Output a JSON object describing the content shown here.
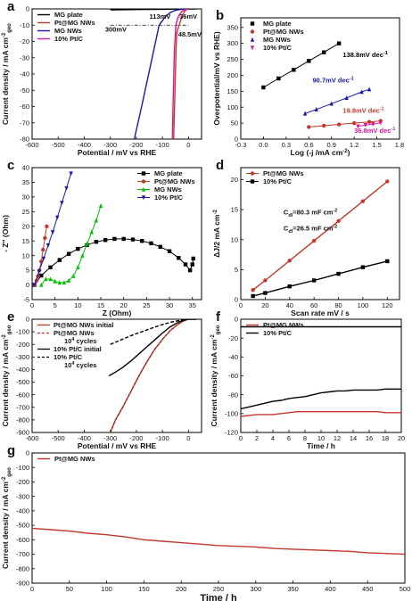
{
  "chart_data": [
    {
      "id": "a",
      "panel_label": "a",
      "type": "line",
      "xlabel": "Potential / mV vs RHE",
      "ylabel": [
        "Current density / mA cm",
        "-2",
        "geo"
      ],
      "xlim": [
        -600,
        50
      ],
      "ylim": [
        -80,
        0
      ],
      "xticks": [
        -600,
        -500,
        -400,
        -300,
        -200,
        -100,
        0
      ],
      "yticks": [
        -80,
        -70,
        -60,
        -50,
        -40,
        -30,
        -20,
        -10,
        0
      ],
      "legend": "top-left",
      "series": [
        {
          "name": "MG plate",
          "color": "#000000",
          "x": [
            -300,
            -200,
            -150,
            -100,
            -50,
            0,
            30
          ],
          "y": [
            -0.6,
            -0.4,
            -0.3,
            -0.2,
            -0.1,
            0,
            0
          ]
        },
        {
          "name": "Pt@MG NWs",
          "color": "#c0392b",
          "x": [
            -57,
            -52,
            -48,
            -45,
            -41,
            -36,
            -30,
            -22,
            -15,
            -8,
            0
          ],
          "y": [
            -80,
            -50,
            -25,
            -15,
            -12.5,
            -10,
            -7,
            -3.5,
            -1.5,
            -0.4,
            0
          ]
        },
        {
          "name": "MG NWs",
          "color": "#1a1aa6",
          "x": [
            -208,
            -180,
            -150,
            -113,
            -90,
            -70,
            -50,
            -30,
            0
          ],
          "y": [
            -80,
            -60,
            -38,
            -10,
            -5,
            -2.2,
            -0.9,
            -0.3,
            0
          ]
        },
        {
          "name": "10% Pt/C",
          "color": "#d61aa0",
          "x": [
            -62,
            -58,
            -54,
            -48.5,
            -42,
            -35,
            -25,
            -15,
            0
          ],
          "y": [
            -80,
            -50,
            -25,
            -10,
            -6,
            -3.5,
            -1.5,
            -0.5,
            0
          ]
        }
      ],
      "reference_line": {
        "y": -10,
        "x": [
          -300,
          0
        ]
      },
      "annotations": [
        {
          "text": "300mV",
          "x": -320,
          "y": -14
        },
        {
          "text": "113mV",
          "x": -150,
          "y": -6
        },
        {
          "text": "36mV",
          "x": -35,
          "y": -6
        },
        {
          "text": "48.5mV",
          "x": -40,
          "y": -17
        }
      ]
    },
    {
      "id": "b",
      "panel_label": "b",
      "type": "scatter",
      "xlabel": "Log (-j /mA cm",
      "xlabel_sup": "-2",
      "xlabel_end": ")",
      "ylabel": "Overpotential/mV vs RHE)",
      "xlim": [
        -0.3,
        1.8
      ],
      "ylim": [
        0,
        380
      ],
      "xticks": [
        -0.3,
        0.0,
        0.3,
        0.6,
        0.9,
        1.2,
        1.5,
        1.8
      ],
      "yticks": [
        0,
        50,
        100,
        150,
        200,
        250,
        300,
        350
      ],
      "legend": "top-left",
      "series": [
        {
          "name": "MG plate",
          "color": "#000000",
          "marker": "square",
          "x": [
            0.0,
            0.2,
            0.4,
            0.6,
            0.8,
            1.0
          ],
          "y": [
            162,
            190,
            217,
            245,
            272,
            300
          ]
        },
        {
          "name": "Pt@MG NWs",
          "color": "#c0392b",
          "marker": "circle",
          "x": [
            0.6,
            0.8,
            1.0,
            1.2,
            1.4,
            1.55
          ],
          "y": [
            38,
            42,
            46,
            50,
            54,
            57
          ]
        },
        {
          "name": "MG NWs",
          "color": "#1a1aa6",
          "marker": "triangle",
          "x": [
            0.55,
            0.7,
            0.9,
            1.1,
            1.3,
            1.4
          ],
          "y": [
            80,
            93,
            111,
            129,
            148,
            156
          ]
        },
        {
          "name": "10% Pt/C",
          "color": "#d61aa0",
          "marker": "triangle-down",
          "x": [
            1.25,
            1.35,
            1.45,
            1.55
          ],
          "y": [
            40,
            44,
            47,
            51
          ]
        }
      ],
      "annotations": [
        {
          "text": "138.8mV dec",
          "sup": "-1",
          "x": 1.05,
          "y": 257,
          "color": "#000000"
        },
        {
          "text": "90.7mV dec",
          "sup": "-1",
          "x": 0.65,
          "y": 178,
          "color": "#1a1aa6"
        },
        {
          "text": "19.8mV dec",
          "sup": "-1",
          "x": 1.05,
          "y": 82,
          "color": "#c0392b"
        },
        {
          "text": "36.8mV dec",
          "sup": "-1",
          "x": 1.2,
          "y": 20,
          "color": "#d61aa0"
        }
      ]
    },
    {
      "id": "c",
      "panel_label": "c",
      "type": "scatter",
      "xlabel": "Z (Ohm)",
      "ylabel": "- Z'' (Ohm)",
      "xlim": [
        0,
        37
      ],
      "ylim": [
        -5,
        40
      ],
      "xticks": [
        0,
        5,
        10,
        15,
        20,
        25,
        30,
        35
      ],
      "yticks": [
        -5,
        0,
        5,
        10,
        15,
        20,
        25,
        30,
        35,
        40
      ],
      "legend": "top-right",
      "series": [
        {
          "name": "MG plate",
          "color": "#000000",
          "marker": "square",
          "x": [
            0.5,
            2,
            4,
            6,
            8,
            10,
            12,
            14,
            16,
            18,
            20,
            22,
            24,
            26,
            28,
            30,
            32,
            33.5,
            34.5,
            35,
            35.2
          ],
          "y": [
            0,
            3.2,
            6,
            8.5,
            10.6,
            12.3,
            13.6,
            14.7,
            15.3,
            15.7,
            15.7,
            15.5,
            15,
            14.2,
            13,
            11.5,
            9.2,
            7,
            5,
            7,
            9
          ]
        },
        {
          "name": "Pt@MG NWs",
          "color": "#c0392b",
          "marker": "circle",
          "x": [
            0.5,
            1,
            1.3,
            1.6,
            2,
            2.4,
            2.8,
            3.2
          ],
          "y": [
            0,
            1.5,
            3,
            5,
            8,
            12,
            16,
            20
          ]
        },
        {
          "name": "MG NWs",
          "color": "#00c000",
          "marker": "triangle",
          "x": [
            2,
            3,
            4,
            5,
            6,
            7,
            8,
            9,
            10,
            11,
            12,
            13,
            14,
            15
          ],
          "y": [
            0,
            2,
            2,
            1.2,
            0.8,
            0.8,
            1.5,
            3,
            6,
            10,
            14,
            18,
            22,
            27
          ]
        },
        {
          "name": "10% Pt/C",
          "color": "#1a1aa6",
          "marker": "triangle-down",
          "x": [
            0.5,
            1.5,
            2.5,
            3.5,
            4.5,
            5.5,
            6.5,
            7.5,
            8.5
          ],
          "y": [
            0,
            4.5,
            9,
            13.5,
            18,
            23,
            28,
            33,
            38
          ]
        }
      ]
    },
    {
      "id": "d",
      "panel_label": "d",
      "type": "line",
      "xlabel": "Scan rate mV / s",
      "ylabel": "ΔJ/2 mA cm",
      "ylabel_sup": "-2",
      "xlim": [
        0,
        130
      ],
      "ylim": [
        0,
        22
      ],
      "xticks": [
        0,
        20,
        40,
        60,
        80,
        100,
        120
      ],
      "yticks": [
        0,
        5,
        10,
        15,
        20
      ],
      "legend": "top-left",
      "series": [
        {
          "name": "Pt@MG NWs",
          "color": "#c0392b",
          "marker": "circle",
          "x": [
            10,
            20,
            40,
            60,
            80,
            100,
            120
          ],
          "y": [
            1.6,
            3.2,
            6.5,
            9.8,
            13.1,
            16.4,
            19.7
          ]
        },
        {
          "name": "10% Pt/C",
          "color": "#000000",
          "marker": "square",
          "x": [
            10,
            20,
            40,
            60,
            80,
            100,
            120
          ],
          "y": [
            0.6,
            1.1,
            2.2,
            3.2,
            4.3,
            5.4,
            6.4
          ]
        }
      ],
      "annotations": [
        {
          "text": "C",
          "sub": "dl",
          "rest": "=80.3 mF cm",
          "sup": "-2",
          "x": 35,
          "y": 14.2
        },
        {
          "text": "C",
          "sub": "dl",
          "rest": "=26.5 mF cm",
          "sup": "-2",
          "x": 35,
          "y": 11.5
        }
      ]
    },
    {
      "id": "e",
      "panel_label": "e",
      "type": "line",
      "xlabel": "Potential / mV vs RHE",
      "ylabel": [
        "Current density / mA cm",
        "-2",
        "geo"
      ],
      "xlim": [
        -600,
        50
      ],
      "ylim": [
        -900,
        0
      ],
      "xticks": [
        -600,
        -500,
        -400,
        -300,
        -200,
        -100,
        0
      ],
      "yticks": [
        -900,
        -800,
        -700,
        -600,
        -500,
        -400,
        -300,
        -200,
        -100,
        0
      ],
      "legend": "top-left",
      "legend_entries": [
        {
          "label": "Pt@MG NWs initial",
          "color": "#c0392b",
          "dash": false
        },
        {
          "label": "Pt@MG NWs",
          "color": "#c0392b",
          "dash": true
        },
        {
          "label": "10",
          "sup": "4",
          "label_rest": " cycles",
          "color": null,
          "dash": false
        },
        {
          "label": "10% Pt/C initial",
          "color": "#000000",
          "dash": false
        },
        {
          "label": "10% Pt/C",
          "color": "#000000",
          "dash": true
        },
        {
          "label": "10",
          "sup": "4",
          "label_rest": " cycles",
          "color": null,
          "dash": false
        }
      ],
      "series": [
        {
          "name": "Pt@MG NWs initial",
          "color": "#c0392b",
          "x": [
            -300,
            -280,
            -250,
            -220,
            -190,
            -160,
            -130,
            -100,
            -70,
            -40,
            -20,
            0,
            30
          ],
          "y": [
            -900,
            -800,
            -690,
            -570,
            -450,
            -340,
            -240,
            -160,
            -90,
            -40,
            -15,
            0,
            0
          ]
        },
        {
          "name": "10% Pt/C initial",
          "color": "#000000",
          "x": [
            -305,
            -280,
            -250,
            -220,
            -190,
            -160,
            -130,
            -100,
            -70,
            -40,
            -20,
            0,
            30
          ],
          "y": [
            -450,
            -420,
            -380,
            -330,
            -275,
            -220,
            -165,
            -110,
            -60,
            -25,
            -8,
            0,
            0
          ]
        },
        {
          "name": "10% Pt/C 10^4 cycles",
          "color": "#000000",
          "dash": true,
          "x": [
            -300,
            -260,
            -220,
            -180,
            -140,
            -100,
            -60,
            -20,
            0
          ],
          "y": [
            -200,
            -165,
            -130,
            -100,
            -70,
            -42,
            -20,
            -5,
            0
          ]
        }
      ]
    },
    {
      "id": "f",
      "panel_label": "f",
      "type": "line",
      "xlabel": "Time / h",
      "ylabel": [
        "Current density / mA cm",
        "-2",
        "geo"
      ],
      "xlim": [
        0,
        20
      ],
      "ylim": [
        -120,
        0
      ],
      "xticks": [
        0,
        2,
        4,
        6,
        8,
        10,
        12,
        14,
        16,
        18,
        20
      ],
      "yticks": [
        -120,
        -100,
        -80,
        -60,
        -40,
        -20,
        0
      ],
      "legend": "top-left",
      "series": [
        {
          "name": "Pt@MG NWs",
          "color": "#c0392b",
          "x": [
            0,
            1,
            2,
            3,
            4,
            5,
            6,
            7,
            8,
            9,
            10,
            11,
            12,
            13,
            14,
            15,
            16,
            17,
            18,
            19,
            20
          ],
          "y": [
            -103,
            -102,
            -101,
            -101,
            -101,
            -100,
            -99,
            -98,
            -98,
            -98,
            -98,
            -98,
            -98,
            -98,
            -98,
            -98,
            -98,
            -98,
            -99,
            -99,
            -99
          ]
        },
        {
          "name": "10% Pt/C",
          "color": "#000000",
          "x": [
            0,
            1,
            2,
            3,
            4,
            5,
            6,
            7,
            8,
            9,
            10,
            11,
            12,
            13,
            14,
            15,
            16,
            17,
            18,
            19,
            20
          ],
          "y": [
            -95,
            -93,
            -91,
            -89,
            -87,
            -86,
            -84,
            -83,
            -82,
            -80,
            -78,
            -77,
            -76,
            -76,
            -75,
            -75,
            -75,
            -75,
            -74,
            -74,
            -74
          ]
        },
        {
          "name": "",
          "color": "#000000",
          "x": [
            0,
            20
          ],
          "y": [
            -8,
            -8
          ]
        }
      ]
    },
    {
      "id": "g",
      "panel_label": "g",
      "type": "line",
      "xlabel": "Time / h",
      "ylabel": [
        "Current density / mA cm",
        "-2",
        "geo"
      ],
      "xlim": [
        0,
        500
      ],
      "ylim": [
        -900,
        0
      ],
      "xticks": [
        0,
        50,
        100,
        150,
        200,
        250,
        300,
        350,
        400,
        450,
        500
      ],
      "yticks": [
        -900,
        -800,
        -700,
        -600,
        -500,
        -400,
        -300,
        -200,
        -100,
        0
      ],
      "legend": "top-left",
      "series": [
        {
          "name": "Pt@MG NWs",
          "color": "#c0392b",
          "x": [
            0,
            25,
            50,
            75,
            100,
            125,
            150,
            175,
            200,
            225,
            250,
            275,
            300,
            325,
            350,
            375,
            400,
            425,
            450,
            475,
            500
          ],
          "y": [
            -520,
            -530,
            -540,
            -555,
            -565,
            -580,
            -600,
            -610,
            -620,
            -630,
            -640,
            -645,
            -650,
            -660,
            -665,
            -670,
            -675,
            -680,
            -690,
            -695,
            -700
          ]
        }
      ]
    }
  ]
}
